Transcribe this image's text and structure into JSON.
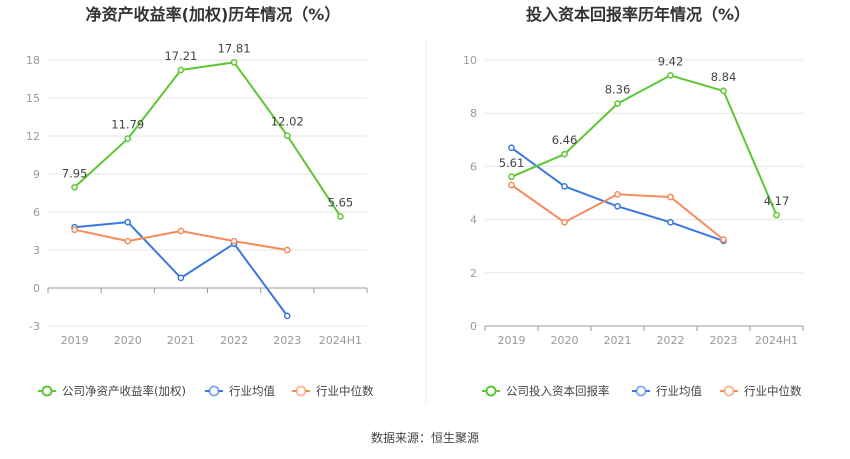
{
  "source_label": "数据来源：恒生聚源",
  "colors": {
    "company": "#5cc732",
    "avg": "#3b78e0",
    "median": "#f58b5b",
    "grid": "#e6e6e6",
    "axis": "#999999"
  },
  "chart_data": [
    {
      "type": "line",
      "title": "净资产收益率(加权)历年情况（%）",
      "categories": [
        "2019",
        "2020",
        "2021",
        "2022",
        "2023",
        "2024H1"
      ],
      "ylim": [
        -3,
        18
      ],
      "yticks": [
        -3,
        0,
        3,
        6,
        9,
        12,
        15,
        18
      ],
      "ytick_labels": [
        "-3",
        "0",
        "3",
        "6",
        "9",
        "12",
        "15",
        "18"
      ],
      "series": [
        {
          "name": "公司净资产收益率(加权)",
          "color": "#5cc732",
          "values": [
            7.95,
            11.79,
            17.21,
            17.81,
            12.02,
            5.65
          ],
          "labels": [
            "7.95",
            "11.79",
            "17.21",
            "17.81",
            "12.02",
            "5.65"
          ]
        },
        {
          "name": "行业均值",
          "color": "#3b78e0",
          "values": [
            4.8,
            5.2,
            0.8,
            3.5,
            -2.2,
            null
          ]
        },
        {
          "name": "行业中位数",
          "color": "#f58b5b",
          "values": [
            4.6,
            3.7,
            4.5,
            3.7,
            3.0,
            null
          ]
        }
      ]
    },
    {
      "type": "line",
      "title": "投入资本回报率历年情况（%）",
      "categories": [
        "2019",
        "2020",
        "2021",
        "2022",
        "2023",
        "2024H1"
      ],
      "ylim": [
        0,
        10
      ],
      "yticks": [
        0,
        2,
        4,
        6,
        8,
        10
      ],
      "ytick_labels": [
        "0",
        "2",
        "4",
        "6",
        "8",
        "10"
      ],
      "series": [
        {
          "name": "公司投入资本回报率",
          "color": "#5cc732",
          "values": [
            5.61,
            6.46,
            8.36,
            9.42,
            8.84,
            4.17
          ],
          "labels": [
            "5.61",
            "6.46",
            "8.36",
            "9.42",
            "8.84",
            "4.17"
          ]
        },
        {
          "name": "行业均值",
          "color": "#3b78e0",
          "values": [
            6.7,
            5.25,
            4.5,
            3.9,
            3.2,
            null
          ]
        },
        {
          "name": "行业中位数",
          "color": "#f58b5b",
          "values": [
            5.3,
            3.9,
            4.95,
            4.85,
            3.25,
            null
          ]
        }
      ]
    }
  ]
}
